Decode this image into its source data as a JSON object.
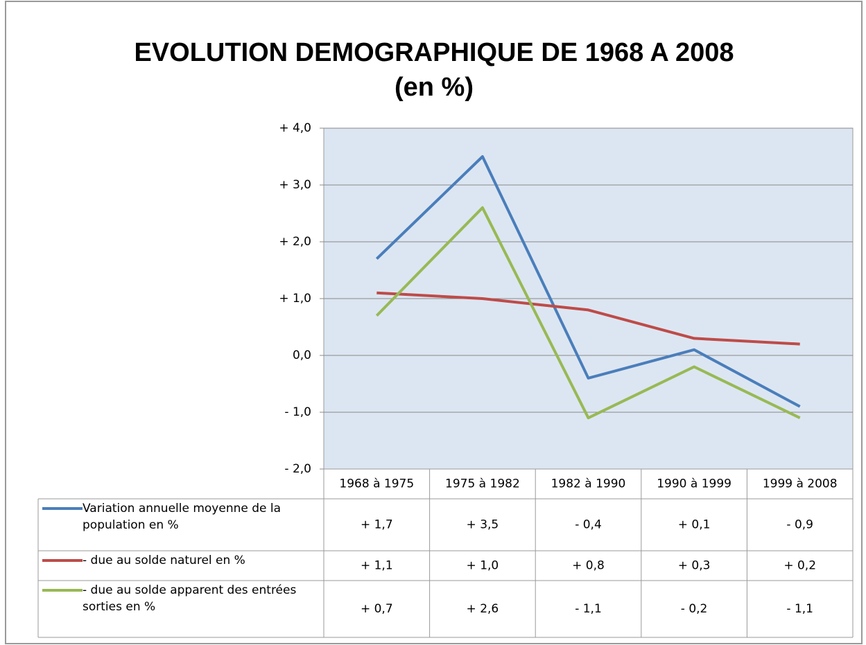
{
  "chart_data": {
    "type": "line",
    "title": "EVOLUTION DEMOGRAPHIQUE DE 1968 A 2008",
    "subtitle": "(en %)",
    "categories": [
      "1968 à 1975",
      "1975 à 1982",
      "1982 à 1990",
      "1990 à 1999",
      "1999 à 2008"
    ],
    "series": [
      {
        "name": "Variation annuelle moyenne de la population en %",
        "color": "#4a7ebb",
        "values": [
          1.7,
          3.5,
          -0.4,
          0.1,
          -0.9
        ],
        "value_labels": [
          "+ 1,7",
          "+ 3,5",
          "- 0,4",
          "+ 0,1",
          "- 0,9"
        ]
      },
      {
        "name": "- due au solde naturel en %",
        "color": "#be4b48",
        "values": [
          1.1,
          1.0,
          0.8,
          0.3,
          0.2
        ],
        "value_labels": [
          "+ 1,1",
          "+ 1,0",
          "+ 0,8",
          "+ 0,3",
          "+ 0,2"
        ]
      },
      {
        "name": "- due au solde apparent des entrées sorties en %",
        "color": "#98b954",
        "values": [
          0.7,
          2.6,
          -1.1,
          -0.2,
          -1.1
        ],
        "value_labels": [
          "+ 0,7",
          "+ 2,6",
          "- 1,1",
          "- 0,2",
          "- 1,1"
        ]
      }
    ],
    "ylim": [
      -2,
      4
    ],
    "yticks": [
      {
        "value": -2,
        "label": "- 2,0"
      },
      {
        "value": -1,
        "label": "- 1,0"
      },
      {
        "value": 0,
        "label": "0,0"
      },
      {
        "value": 1,
        "label": "+ 1,0"
      },
      {
        "value": 2,
        "label": "+ 2,0"
      },
      {
        "value": 3,
        "label": "+ 3,0"
      },
      {
        "value": 4,
        "label": "+ 4,0"
      }
    ],
    "grid": true,
    "plot_background": "#dce6f2"
  }
}
